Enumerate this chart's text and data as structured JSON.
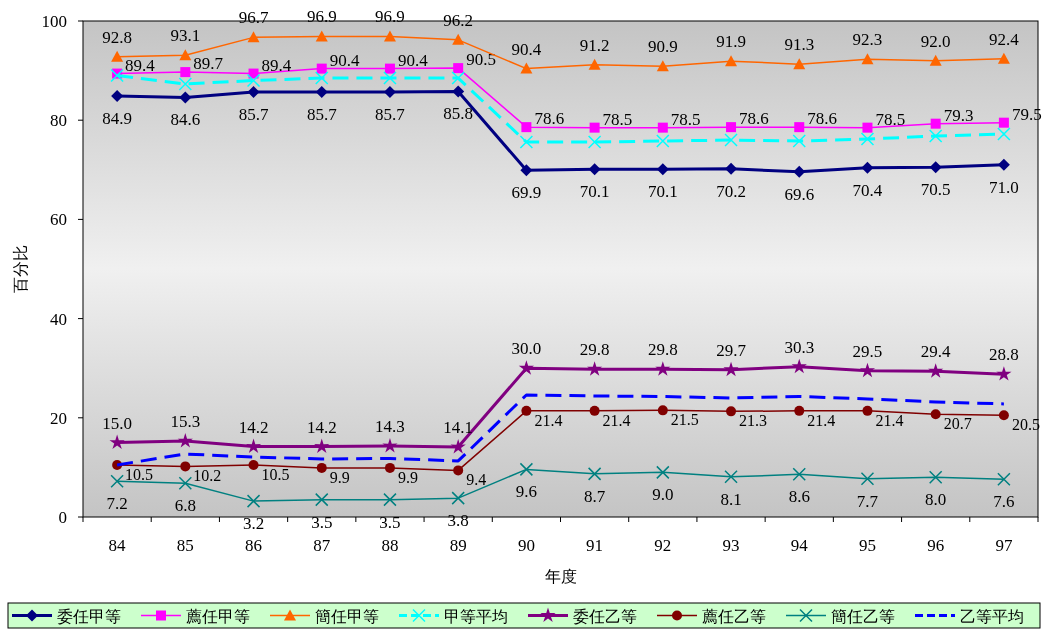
{
  "chart_data": {
    "type": "line",
    "xlabel": "年度",
    "ylabel": "百分比",
    "categories": [
      "84",
      "85",
      "86",
      "87",
      "88",
      "89",
      "90",
      "91",
      "92",
      "93",
      "94",
      "95",
      "96",
      "97"
    ],
    "ylim": [
      0,
      100
    ],
    "yticks": [
      0,
      20,
      40,
      60,
      80,
      100
    ],
    "grid": false,
    "legend": "bottom",
    "series": [
      {
        "name": "委任甲等",
        "color": "#000080",
        "marker": "diamond",
        "line_style": "solid",
        "values": [
          84.9,
          84.6,
          85.7,
          85.7,
          85.7,
          85.8,
          69.9,
          70.1,
          70.1,
          70.2,
          69.6,
          70.4,
          70.5,
          71.0
        ],
        "value_labels": [
          "84.9",
          "84.6",
          "85.7",
          "85.7",
          "85.7",
          "85.8",
          "69.9",
          "70.1",
          "70.1",
          "70.2",
          "69.6",
          "70.4",
          "70.5",
          "71.0"
        ]
      },
      {
        "name": "薦任甲等",
        "color": "#ff00ff",
        "marker": "square",
        "line_style": "solid",
        "values": [
          89.4,
          89.7,
          89.4,
          90.4,
          90.4,
          90.5,
          78.6,
          78.5,
          78.5,
          78.6,
          78.6,
          78.5,
          79.3,
          79.5
        ],
        "value_labels": [
          "89.4",
          "89.7",
          "89.4",
          "90.4",
          "90.4",
          "90.5",
          "78.6",
          "78.5",
          "78.5",
          "78.6",
          "78.6",
          "78.5",
          "79.3",
          "79.5"
        ]
      },
      {
        "name": "簡任甲等",
        "color": "#ff6600",
        "marker": "triangle",
        "line_style": "solid",
        "values": [
          92.8,
          93.1,
          96.7,
          96.9,
          96.9,
          96.2,
          90.4,
          91.2,
          90.9,
          91.9,
          91.3,
          92.3,
          92.0,
          92.4
        ],
        "value_labels": [
          "92.8",
          "93.1",
          "96.7",
          "96.9",
          "96.9",
          "96.2",
          "90.4",
          "91.2",
          "90.9",
          "91.9",
          "91.3",
          "92.3",
          "92.0",
          "92.4"
        ]
      },
      {
        "name": "甲等平均",
        "color": "#00ffff",
        "marker": "cross",
        "line_style": "dashed",
        "values": [
          89.0,
          87.3,
          88.0,
          88.5,
          88.5,
          88.5,
          75.6,
          75.6,
          75.8,
          76.0,
          75.8,
          76.2,
          76.8,
          77.2
        ]
      },
      {
        "name": "委任乙等",
        "color": "#800080",
        "marker": "star",
        "line_style": "solid",
        "values": [
          15.0,
          15.3,
          14.2,
          14.2,
          14.3,
          14.1,
          30.0,
          29.8,
          29.8,
          29.7,
          30.3,
          29.5,
          29.4,
          28.8
        ],
        "value_labels": [
          "15.0",
          "15.3",
          "14.2",
          "14.2",
          "14.3",
          "14.1",
          "30.0",
          "29.8",
          "29.8",
          "29.7",
          "30.3",
          "29.5",
          "29.4",
          "28.8"
        ]
      },
      {
        "name": "薦任乙等",
        "color": "#800000",
        "marker": "circle",
        "line_style": "solid",
        "values": [
          10.5,
          10.2,
          10.5,
          9.9,
          9.9,
          9.4,
          21.4,
          21.4,
          21.5,
          21.3,
          21.4,
          21.4,
          20.7,
          20.5
        ],
        "value_labels": [
          "10.5",
          "10.2",
          "10.5",
          "9.9",
          "9.9",
          "9.4",
          "21.4",
          "21.4",
          "21.5",
          "21.3",
          "21.4",
          "21.4",
          "20.7",
          "20.5"
        ]
      },
      {
        "name": "簡任乙等",
        "color": "#008080",
        "marker": "cross",
        "line_style": "solid",
        "values": [
          7.2,
          6.8,
          3.2,
          3.5,
          3.5,
          3.8,
          9.6,
          8.7,
          9.0,
          8.1,
          8.6,
          7.7,
          8.0,
          7.6
        ],
        "value_labels": [
          "7.2",
          "6.8",
          "3.2",
          "3.5",
          "3.5",
          "3.8",
          "9.6",
          "8.7",
          "9.0",
          "8.1",
          "8.6",
          "7.7",
          "8.0",
          "7.6"
        ]
      },
      {
        "name": "乙等平均",
        "color": "#0000ff",
        "marker": "none",
        "line_style": "dashed",
        "values": [
          10.5,
          12.7,
          12.1,
          11.7,
          11.8,
          11.3,
          24.6,
          24.4,
          24.3,
          24.0,
          24.3,
          23.8,
          23.2,
          22.8
        ]
      }
    ]
  }
}
